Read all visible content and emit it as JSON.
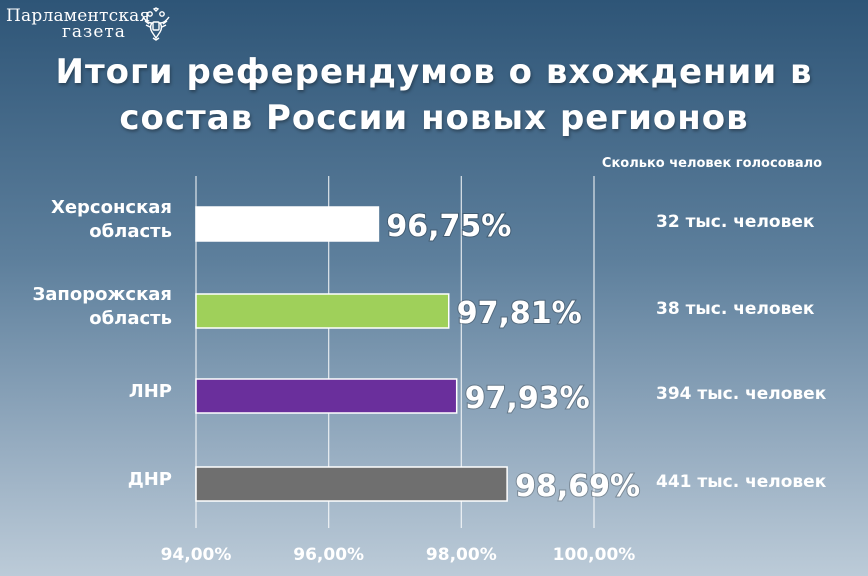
{
  "header": {
    "logo_line1": "Парламентская",
    "logo_line2": "газета",
    "logo_icon": "double-headed-eagle-icon",
    "title_line1": "Итоги референдумов о вхождении в",
    "title_line2": "состав России новых регионов"
  },
  "votes": {
    "header": "Сколько человек голосовало",
    "items": [
      "32 тыс. человек",
      "38 тыс. человек",
      "394 тыс. человек",
      "441 тыс. человек"
    ]
  },
  "colors": {
    "background": "#4a6f8f",
    "bar_kherson": "#ffffff",
    "bar_zaporozhye": "#9fd05a",
    "bar_lnr": "#6a2f9c",
    "bar_dnr": "#6f6f6f"
  },
  "chart_data": {
    "type": "bar",
    "orientation": "horizontal",
    "categories": [
      [
        "Херсонская",
        "область"
      ],
      [
        "Запорожская",
        "область"
      ],
      [
        "ЛНР"
      ],
      [
        "ДНР"
      ]
    ],
    "values": [
      96.75,
      97.81,
      97.93,
      98.69
    ],
    "value_labels": [
      "96,75%",
      "97,81%",
      "97,93%",
      "98,69%"
    ],
    "bar_colors": [
      "#ffffff",
      "#9fd05a",
      "#6a2f9c",
      "#6f6f6f"
    ],
    "xlim": [
      94,
      100
    ],
    "xticks": [
      94,
      96,
      98,
      100
    ],
    "xtick_labels": [
      "94,00%",
      "96,00%",
      "98,00%",
      "100,00%"
    ],
    "grid": "vertical"
  }
}
